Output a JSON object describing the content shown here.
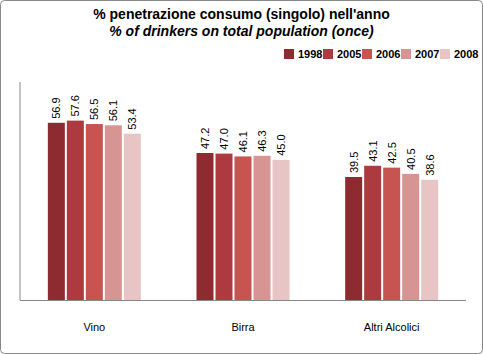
{
  "chart_data": {
    "type": "bar",
    "title": "% penetrazione consumo (singolo) nell'anno",
    "subtitle": "% of drinkers on total population (once)",
    "categories": [
      "Vino",
      "Birra",
      "Altri Alcolici"
    ],
    "series": [
      {
        "name": "1998",
        "color": "#8e2b30",
        "values": [
          56.9,
          47.2,
          39.5
        ],
        "value_labels": [
          "56.9",
          "47.2",
          "39.5"
        ]
      },
      {
        "name": "2005",
        "color": "#ad3a3e",
        "values": [
          57.6,
          47.0,
          43.1
        ],
        "value_labels": [
          "57.6",
          "47.0",
          "43.1"
        ]
      },
      {
        "name": "2006",
        "color": "#c85451",
        "values": [
          56.5,
          46.1,
          42.5
        ],
        "value_labels": [
          "56.5",
          "46.1",
          "42.5"
        ]
      },
      {
        "name": "2007",
        "color": "#d69593",
        "values": [
          56.1,
          46.3,
          40.5
        ],
        "value_labels": [
          "56.1",
          "46.3",
          "40.5"
        ]
      },
      {
        "name": "2008",
        "color": "#e8c4c4",
        "values": [
          53.4,
          45.0,
          38.6
        ],
        "value_labels": [
          "53.4",
          "45.0",
          "38.6"
        ]
      }
    ],
    "ylim": [
      0,
      70
    ],
    "data_labels": true,
    "tick_labels": "x",
    "legend": "top",
    "grid": false
  }
}
